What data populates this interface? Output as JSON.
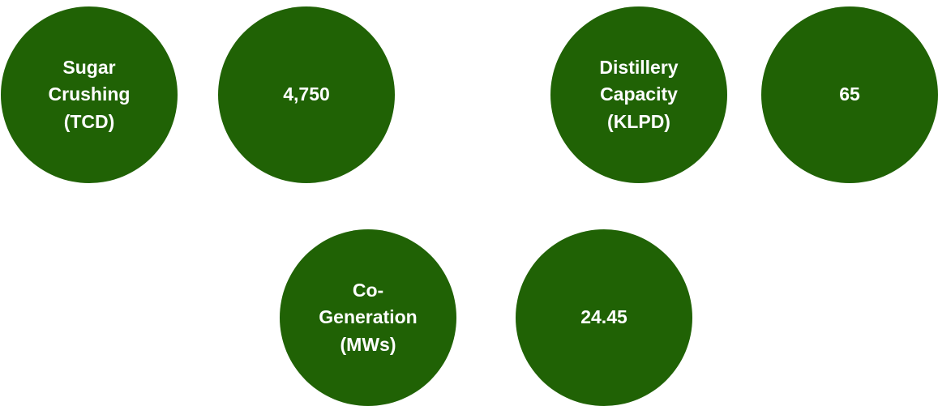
{
  "stats": [
    {
      "label": "Sugar Crushing (TCD)",
      "value": "4,750"
    },
    {
      "label": "Distillery Capacity (KLPD)",
      "value": "65"
    },
    {
      "label": "Co-Generation (MWs)",
      "value": "24.45"
    }
  ]
}
